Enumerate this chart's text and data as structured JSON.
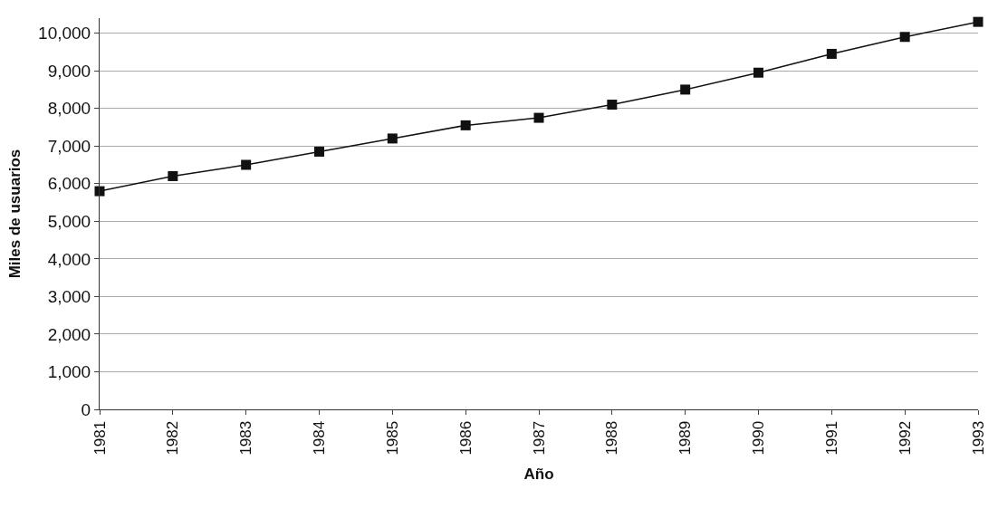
{
  "chart_data": {
    "type": "line",
    "xlabel": "Año",
    "ylabel": "Miles de usuarios",
    "categories": [
      "1981",
      "1982",
      "1983",
      "1984",
      "1985",
      "1986",
      "1987",
      "1988",
      "1989",
      "1990",
      "1991",
      "1992",
      "1993"
    ],
    "series": [
      {
        "color": "#111111",
        "values": [
          5800,
          6200,
          6500,
          6850,
          7200,
          7550,
          7750,
          8100,
          8500,
          8950,
          9450,
          9900,
          10300
        ]
      }
    ],
    "ylim": [
      0,
      10400
    ],
    "yticks": [
      {
        "value": 0,
        "label": "0"
      },
      {
        "value": 1000,
        "label": "1,000"
      },
      {
        "value": 2000,
        "label": "2,000"
      },
      {
        "value": 3000,
        "label": "3,000"
      },
      {
        "value": 4000,
        "label": "4,000"
      },
      {
        "value": 5000,
        "label": "5,000"
      },
      {
        "value": 6000,
        "label": "6,000"
      },
      {
        "value": 7000,
        "label": "7,000"
      },
      {
        "value": 8000,
        "label": "8,000"
      },
      {
        "value": 9000,
        "label": "9,000"
      },
      {
        "value": 10000,
        "label": "10,000"
      }
    ],
    "grid": "y",
    "marker": "square",
    "line_style": "solid"
  }
}
